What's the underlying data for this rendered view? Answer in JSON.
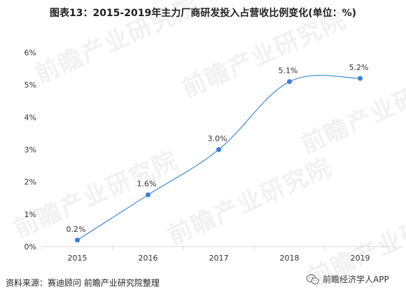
{
  "title": "图表13：2015-2019年主力厂商研发投入占营收比例变化(单位：%)",
  "watermark": {
    "text": "前瞻产业研究院",
    "color": "#e6e6e6"
  },
  "chart_data": {
    "type": "line",
    "title": "图表13：2015-2019年主力厂商研发投入占营收比例变化(单位：%)",
    "categories": [
      "2015",
      "2016",
      "2017",
      "2018",
      "2019"
    ],
    "series": [
      {
        "values": [
          0.2,
          1.6,
          3.0,
          5.1,
          5.2
        ],
        "labels": [
          "0.2%",
          "1.6%",
          "3.0%",
          "5.1%",
          "5.2%"
        ]
      }
    ],
    "yticks": [
      "0%",
      "1%",
      "2%",
      "3%",
      "4%",
      "5%",
      "6%"
    ],
    "ylim": [
      0,
      6
    ],
    "grid": false,
    "line_color": "#4a90d9",
    "marker_color": "#3a7fd5",
    "axis_color": "#d9d9d9"
  },
  "footer": {
    "source": "资料来源：赛迪顾问 前瞻产业研究院整理",
    "wechat_label": "前瞻经济学人APP"
  }
}
